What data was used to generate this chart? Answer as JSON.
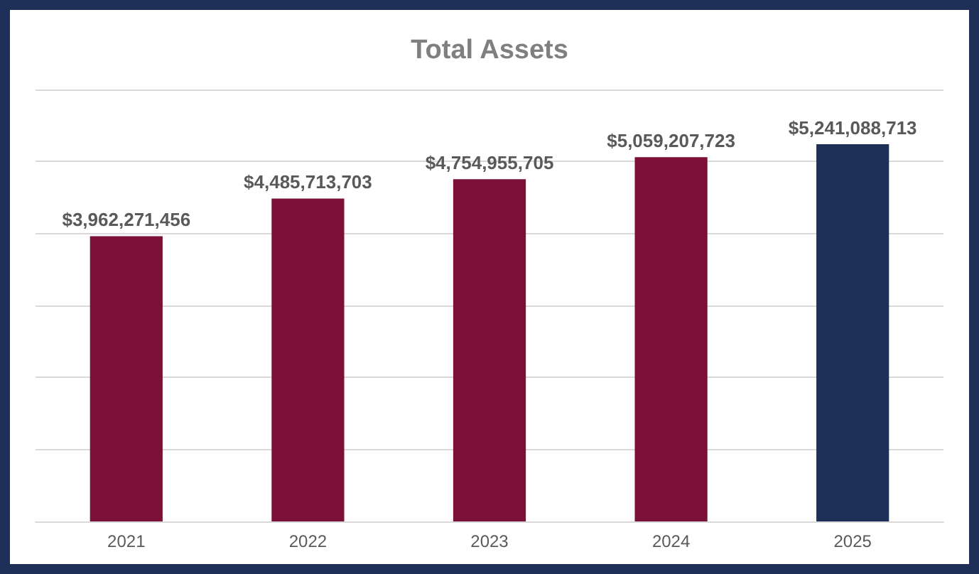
{
  "chart_data": {
    "type": "bar",
    "title": "Total Assets",
    "categories": [
      "2021",
      "2022",
      "2023",
      "2024",
      "2025"
    ],
    "values": [
      3962271456,
      4485713703,
      4754955705,
      5059207723,
      5241088713
    ],
    "colors": [
      "#7b1038",
      "#7b1038",
      "#7b1038",
      "#7b1038",
      "#1e3058"
    ],
    "value_labels": [
      "$3,962,271,456",
      "$4,485,713,703",
      "$4,754,955,705",
      "$5,059,207,723",
      "$5,241,088,713"
    ],
    "ylim": [
      0,
      6000000000
    ],
    "yticks": [
      0,
      1000000000,
      2000000000,
      3000000000,
      4000000000,
      5000000000,
      6000000000
    ],
    "grid": "y",
    "tick_labels": "x"
  }
}
